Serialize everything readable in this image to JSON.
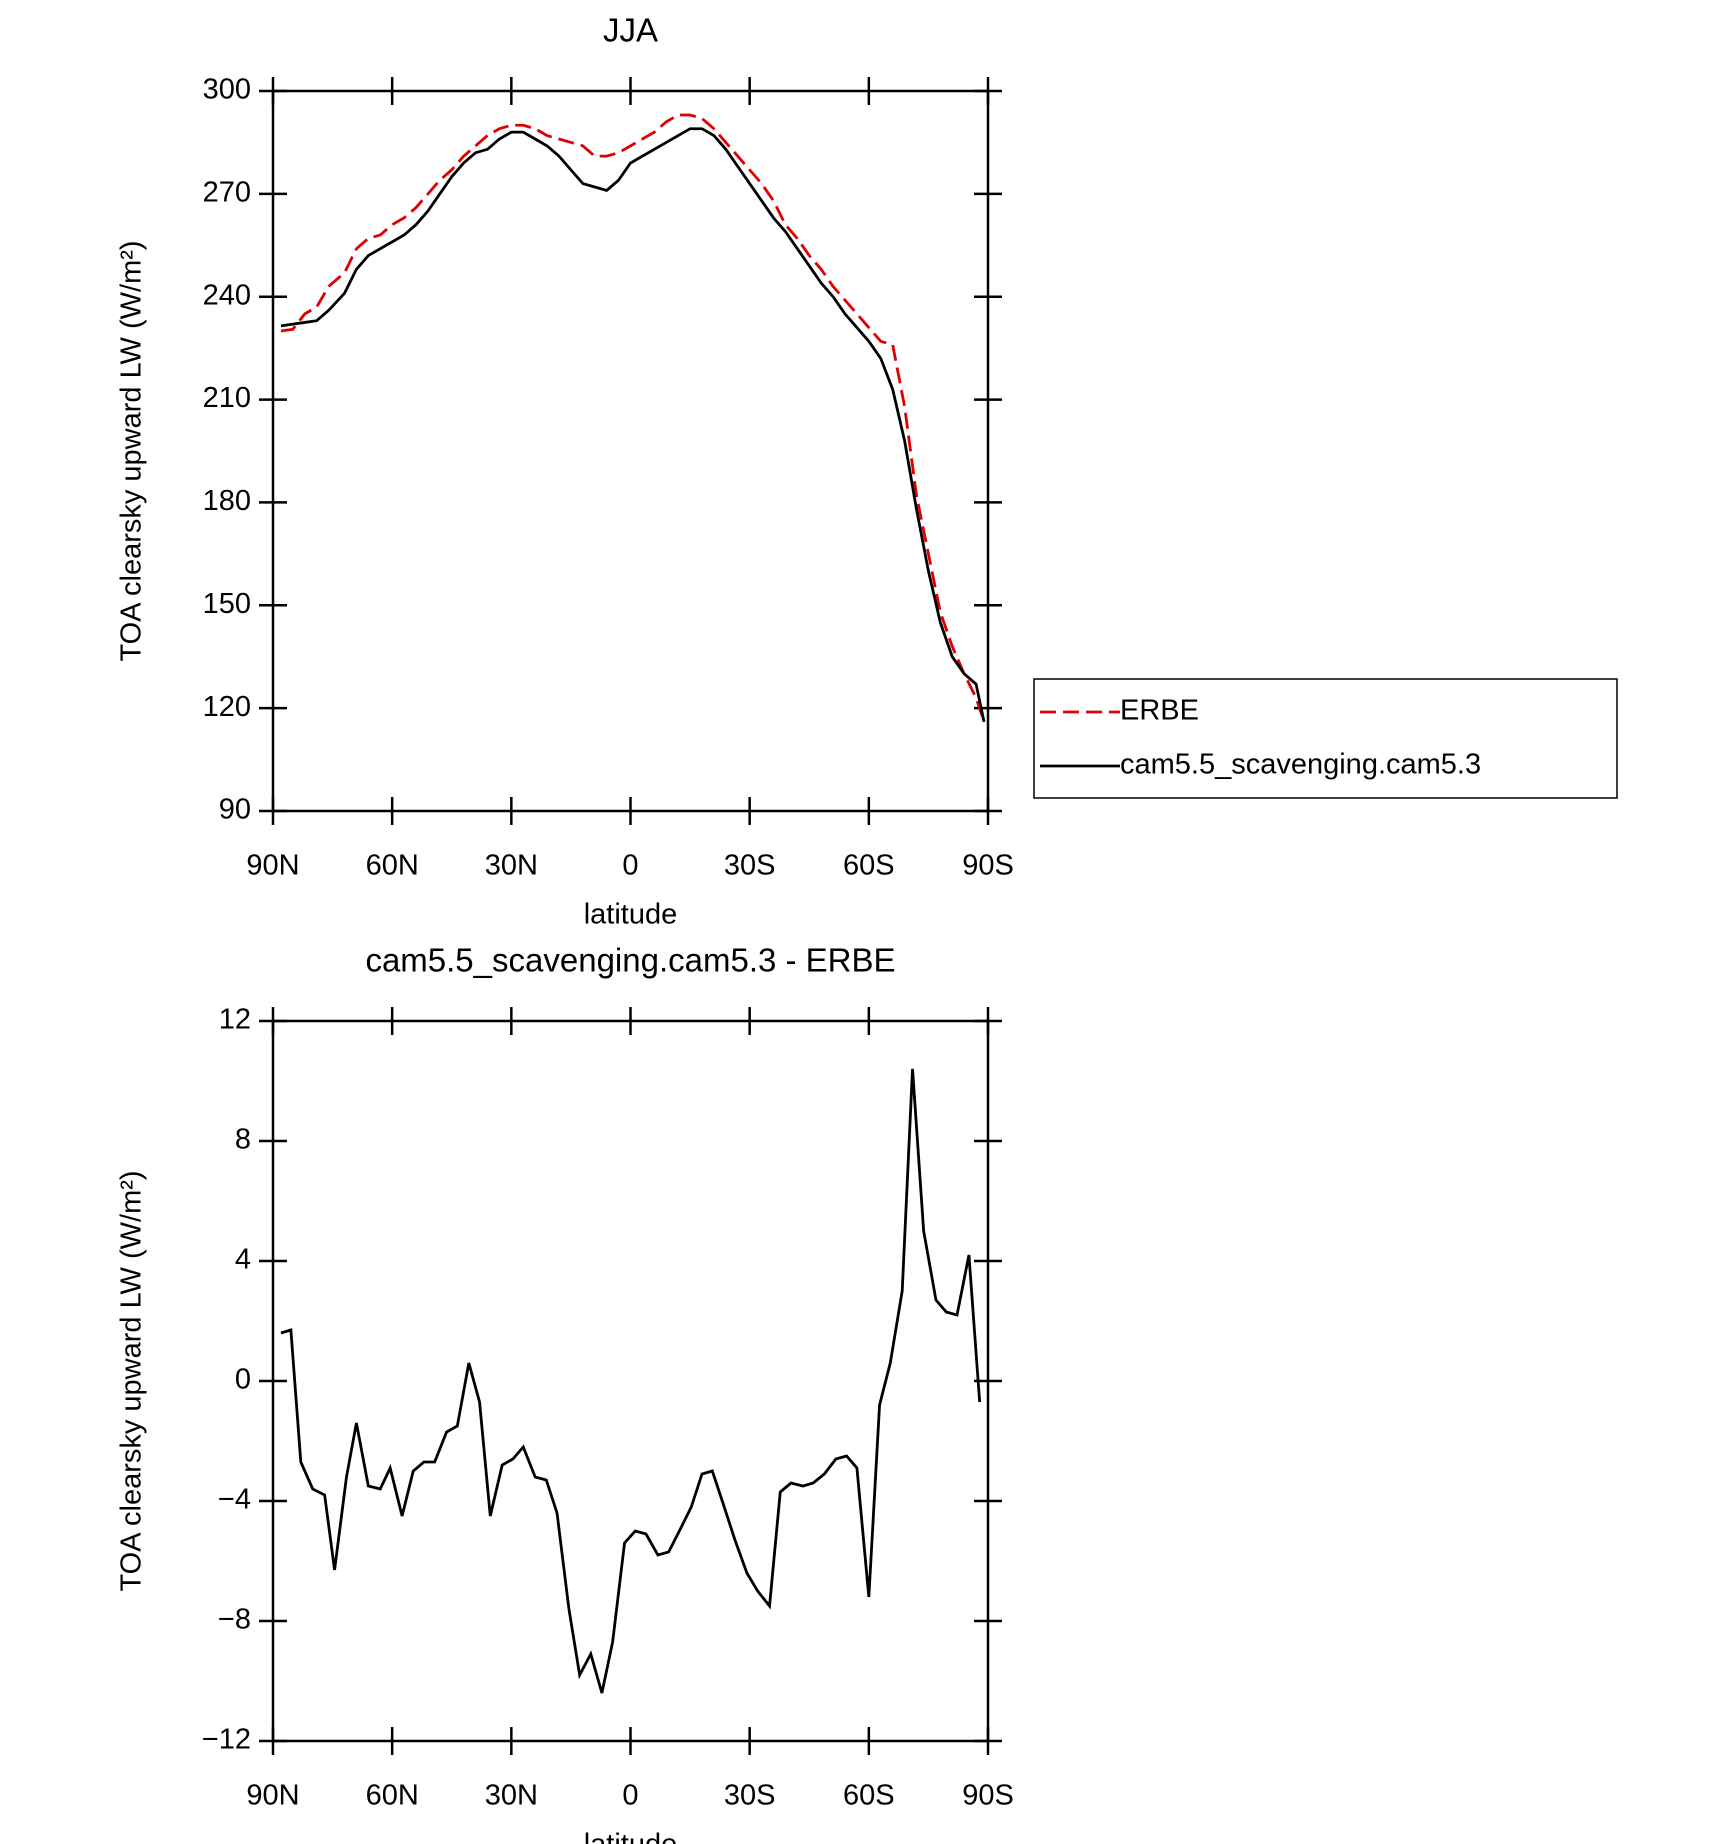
{
  "chart_data": [
    {
      "type": "line",
      "title": "JJA",
      "xlabel": "latitude",
      "ylabel": "TOA clearsky upward LW (W/m²)",
      "xlim": [
        90,
        -90
      ],
      "xticks": [
        {
          "value": 90,
          "label": "90N"
        },
        {
          "value": 60,
          "label": "60N"
        },
        {
          "value": 30,
          "label": "30N"
        },
        0,
        {
          "value": -30,
          "label": "30S"
        },
        {
          "value": -60,
          "label": "60S"
        },
        {
          "value": -90,
          "label": "90S"
        }
      ],
      "ylim": [
        90,
        300
      ],
      "yticks": [
        90,
        120,
        150,
        180,
        210,
        240,
        270,
        300
      ],
      "legend": "outside-right",
      "x": [
        88,
        85,
        82,
        79,
        76,
        72,
        69,
        66,
        63,
        60,
        57,
        54,
        51,
        48,
        45,
        42,
        39,
        36,
        33,
        30,
        27,
        24,
        21,
        18,
        15,
        12,
        9,
        6,
        3,
        0,
        -3,
        -6,
        -9,
        -12,
        -15,
        -18,
        -21,
        -24,
        -27,
        -30,
        -33,
        -36,
        -39,
        -42,
        -45,
        -48,
        -51,
        -54,
        -57,
        -60,
        -63,
        -66,
        -69,
        -72,
        -75,
        -78,
        -81,
        -84,
        -87,
        -89
      ],
      "series": [
        {
          "name": "ERBE",
          "color": "#e00000",
          "dashed": true,
          "values": [
            230,
            230.5,
            235,
            237,
            243,
            247,
            254,
            257,
            258,
            261,
            263,
            266,
            270,
            274,
            277,
            281,
            284,
            287,
            289,
            290,
            290,
            289,
            287,
            286,
            285,
            284,
            281,
            281,
            282,
            284,
            286,
            288,
            291,
            293,
            293,
            292,
            289,
            285,
            281,
            277,
            273,
            268,
            261,
            257,
            252,
            248,
            243,
            239,
            235,
            231,
            227,
            226,
            208,
            182,
            165,
            148,
            138,
            130,
            123,
            116
          ]
        },
        {
          "name": "cam5.5_scavenging.cam5.3",
          "color": "#000000",
          "dashed": false,
          "values": [
            231.5,
            232,
            232.5,
            233,
            236,
            241,
            248,
            252,
            254,
            256,
            258,
            261,
            265,
            270,
            275,
            279,
            282,
            283,
            286,
            288,
            288,
            286,
            284,
            281,
            277,
            273,
            272,
            271,
            274,
            279,
            281,
            283,
            285,
            287,
            289,
            289,
            287,
            283,
            278,
            273,
            268,
            263,
            259,
            254,
            249,
            244,
            240,
            235,
            231,
            227,
            222,
            213,
            198,
            178,
            160,
            145,
            135,
            130,
            127,
            116
          ]
        }
      ]
    },
    {
      "type": "line",
      "title": "cam5.5_scavenging.cam5.3 - ERBE",
      "xlabel": "latitude",
      "ylabel": "TOA clearsky upward LW (W/m²)",
      "xlim": [
        90,
        -90
      ],
      "xticks": [
        {
          "value": 90,
          "label": "90N"
        },
        {
          "value": 60,
          "label": "60N"
        },
        {
          "value": 30,
          "label": "30N"
        },
        0,
        {
          "value": -30,
          "label": "30S"
        },
        {
          "value": -60,
          "label": "60S"
        },
        {
          "value": -90,
          "label": "90S"
        }
      ],
      "ylim": [
        -12,
        12
      ],
      "yticks": [
        {
          "value": -12,
          "label": "−12"
        },
        {
          "value": -8,
          "label": "−8"
        },
        {
          "value": -4,
          "label": "−4"
        },
        0,
        4,
        8,
        12
      ],
      "x": [
        88,
        85.5,
        83,
        80,
        77,
        74.5,
        71.5,
        69,
        66,
        63,
        60.5,
        57.5,
        54.7,
        52,
        49.3,
        46.3,
        43.6,
        40.7,
        38,
        35.3,
        32.3,
        29.6,
        27,
        24,
        21.2,
        18.5,
        15.5,
        12.8,
        10,
        7.2,
        4.5,
        1.5,
        -1.2,
        -3.9,
        -6.9,
        -9.6,
        -12.3,
        -15.3,
        -18,
        -20.6,
        -23.6,
        -26.3,
        -29.3,
        -32,
        -35,
        -37.7,
        -40.4,
        -43.4,
        -46,
        -48.8,
        -51.7,
        -54.4,
        -57,
        -60,
        -62.7,
        -65.4,
        -68.4,
        -71,
        -73.8,
        -76.9,
        -79.5,
        -82.2,
        -85.2,
        -87.9
      ],
      "series": [
        {
          "color": "#000000",
          "dashed": false,
          "values": [
            1.6,
            1.7,
            -2.7,
            -3.6,
            -3.8,
            -6.3,
            -3.2,
            -1.4,
            -3.5,
            -3.6,
            -2.9,
            -4.5,
            -3.0,
            -2.7,
            -2.7,
            -1.7,
            -1.5,
            0.6,
            -0.7,
            -4.5,
            -2.8,
            -2.6,
            -2.2,
            -3.2,
            -3.3,
            -4.4,
            -7.6,
            -9.8,
            -9.1,
            -10.4,
            -8.7,
            -5.4,
            -5.0,
            -5.1,
            -5.8,
            -5.7,
            -5.0,
            -4.2,
            -3.1,
            -3.0,
            -4.2,
            -5.3,
            -6.4,
            -7.0,
            -7.5,
            -3.7,
            -3.4,
            -3.5,
            -3.4,
            -3.1,
            -2.6,
            -2.5,
            -2.9,
            -7.2,
            -0.8,
            0.6,
            3.0,
            10.4,
            5.0,
            2.7,
            2.3,
            2.2,
            4.2,
            -0.7
          ]
        }
      ]
    }
  ]
}
